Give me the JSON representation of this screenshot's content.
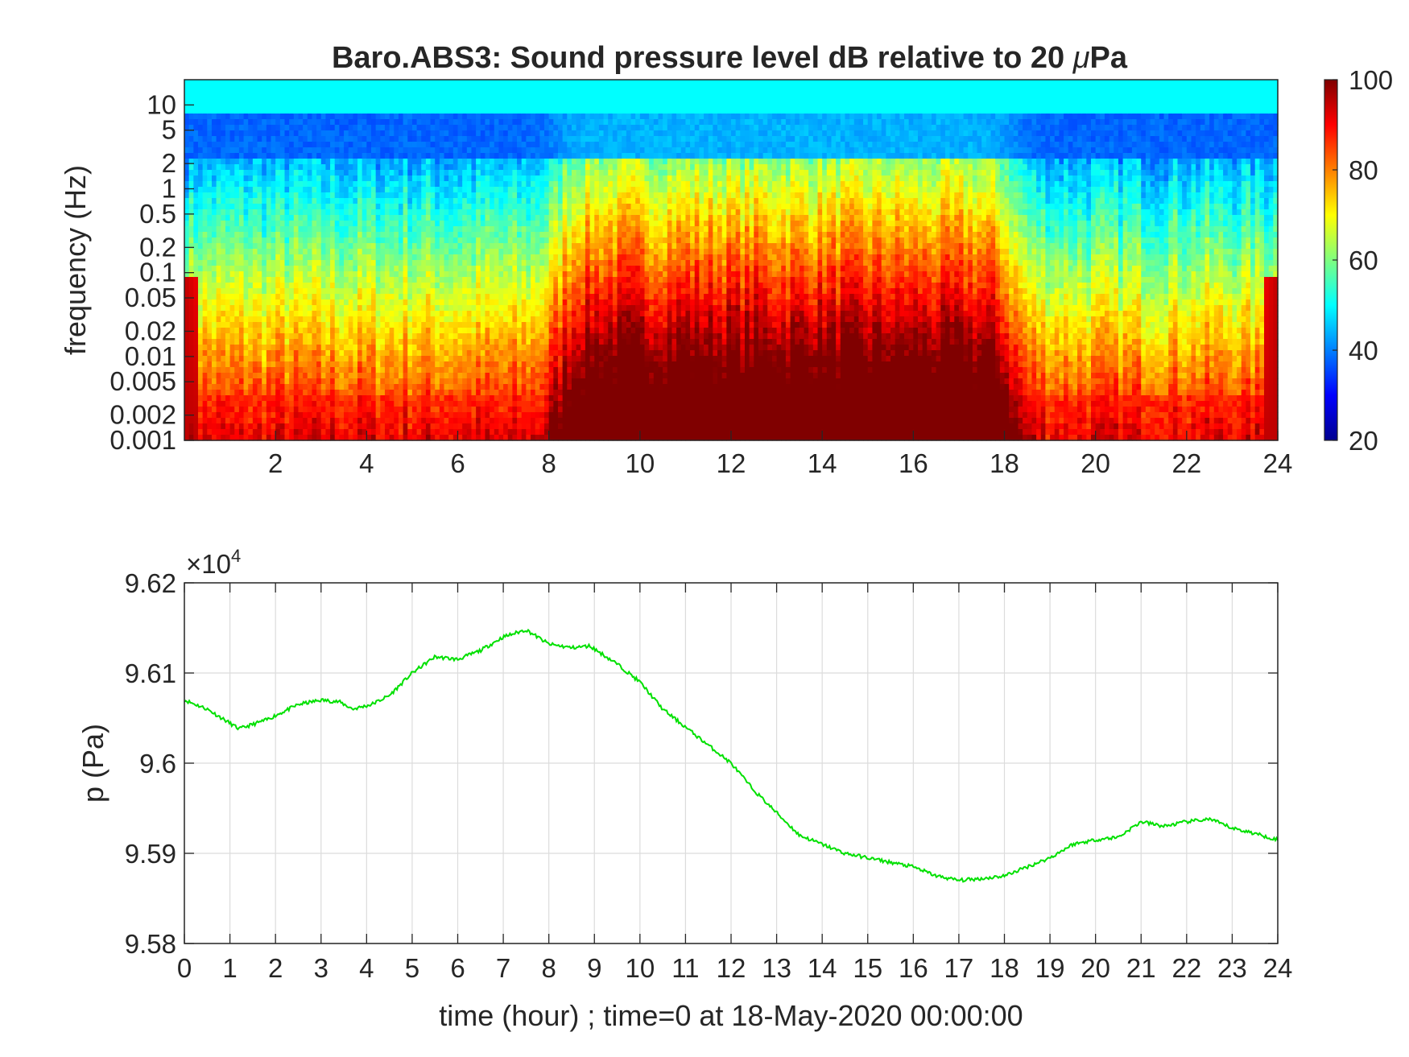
{
  "colors": {
    "line": "#00e000",
    "axis": "#262626",
    "grid": "#dcdcdc",
    "colormap": "jet"
  },
  "chart_data": [
    {
      "type": "heatmap",
      "title": "Baro.ABS3: Sound pressure level dB relative to 20 μPa",
      "title_main": "Baro.ABS3: Sound pressure level dB relative to 20 ",
      "title_unit": "Pa",
      "title_symbol": "μ",
      "ylabel": "frequency (Hz)",
      "yscale": "log",
      "x_tick_labels": [
        "2",
        "4",
        "6",
        "8",
        "10",
        "12",
        "14",
        "16",
        "18",
        "20",
        "22",
        "24"
      ],
      "y_tick_labels": [
        "10",
        "5",
        "2",
        "1",
        "0.5",
        "0.2",
        "0.1",
        "0.05",
        "0.02",
        "0.01",
        "0.005",
        "0.002",
        "0.001"
      ],
      "xlim": [
        0,
        24
      ],
      "ylim": [
        0.001,
        20
      ],
      "colorbar": {
        "range": [
          20,
          100
        ],
        "tick_labels": [
          "100",
          "80",
          "60",
          "40",
          "20"
        ]
      },
      "day_band_hours": [
        8.2,
        18.2
      ],
      "grid": false
    },
    {
      "type": "line",
      "xlabel": "time (hour) ; time=0 at 18-May-2020 00:00:00",
      "ylabel": "p (Pa)",
      "exponent_base": "10",
      "exponent": "4",
      "x_tick_labels": [
        "0",
        "1",
        "2",
        "3",
        "4",
        "5",
        "6",
        "7",
        "8",
        "9",
        "10",
        "11",
        "12",
        "13",
        "14",
        "15",
        "16",
        "17",
        "18",
        "19",
        "20",
        "21",
        "22",
        "23",
        "24"
      ],
      "y_tick_labels": [
        "9.62",
        "9.61",
        "9.6",
        "9.59",
        "9.58"
      ],
      "xlim": [
        0,
        24
      ],
      "ylim": [
        95800,
        96200
      ],
      "grid": true,
      "series": [
        {
          "x": [
            0,
            0.5,
            1.2,
            1.8,
            2.5,
            3,
            3.4,
            3.7,
            4.1,
            4.5,
            5,
            5.5,
            6,
            6.5,
            7,
            7.5,
            8,
            8.5,
            8.9,
            9.5,
            10,
            10.5,
            11,
            11.5,
            12,
            12.5,
            13,
            13.5,
            14,
            14.5,
            15,
            15.5,
            16,
            16.5,
            17,
            17.5,
            18,
            18.5,
            19,
            19.5,
            20,
            20.5,
            21,
            21.5,
            22,
            22.5,
            23,
            23.5,
            24
          ],
          "y": [
            96070,
            96060,
            96038,
            96048,
            96065,
            96070,
            96068,
            96060,
            96065,
            96075,
            96100,
            96118,
            96115,
            96125,
            96140,
            96148,
            96132,
            96128,
            96130,
            96110,
            96090,
            96060,
            96040,
            96020,
            96000,
            95970,
            95945,
            95920,
            95910,
            95900,
            95895,
            95890,
            95885,
            95875,
            95870,
            95872,
            95875,
            95885,
            95895,
            95910,
            95915,
            95918,
            95935,
            95930,
            95935,
            95938,
            95928,
            95922,
            95915
          ]
        }
      ]
    }
  ]
}
